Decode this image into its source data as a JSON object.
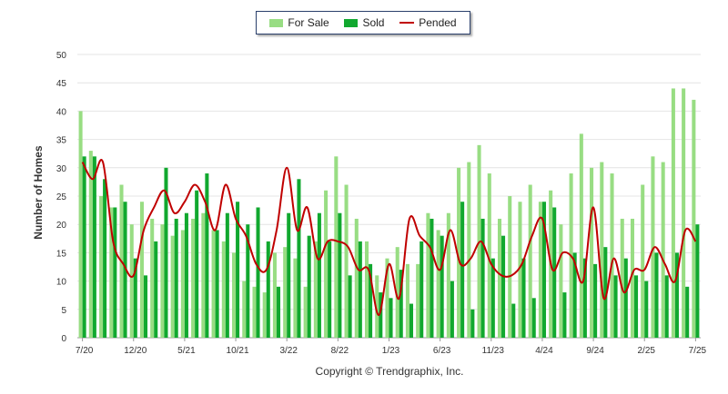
{
  "chart_data": {
    "type": "bar",
    "title": "",
    "xlabel": "",
    "ylabel": "Number of Homes",
    "ylim": [
      0,
      50
    ],
    "yticks": [
      0,
      5,
      10,
      15,
      20,
      25,
      30,
      35,
      40,
      45,
      50
    ],
    "grid": "horizontal",
    "legend_position": "top-center",
    "x_tick_labels": [
      {
        "index": 0,
        "label": "7/20"
      },
      {
        "index": 5,
        "label": "12/20"
      },
      {
        "index": 10,
        "label": "5/21"
      },
      {
        "index": 15,
        "label": "10/21"
      },
      {
        "index": 20,
        "label": "3/22"
      },
      {
        "index": 25,
        "label": "8/22"
      },
      {
        "index": 30,
        "label": "1/23"
      },
      {
        "index": 35,
        "label": "6/23"
      },
      {
        "index": 40,
        "label": "11/23"
      },
      {
        "index": 45,
        "label": "4/24"
      },
      {
        "index": 50,
        "label": "9/24"
      },
      {
        "index": 55,
        "label": "2/25"
      },
      {
        "index": 60,
        "label": "7/25"
      }
    ],
    "categories": [
      "7/20",
      "8/20",
      "9/20",
      "10/20",
      "11/20",
      "12/20",
      "1/21",
      "2/21",
      "3/21",
      "4/21",
      "5/21",
      "6/21",
      "7/21",
      "8/21",
      "9/21",
      "10/21",
      "11/21",
      "12/21",
      "1/22",
      "2/22",
      "3/22",
      "4/22",
      "5/22",
      "6/22",
      "7/22",
      "8/22",
      "9/22",
      "10/22",
      "11/22",
      "12/22",
      "1/23",
      "2/23",
      "3/23",
      "4/23",
      "5/23",
      "6/23",
      "7/23",
      "8/23",
      "9/23",
      "10/23",
      "11/23",
      "12/23",
      "1/24",
      "2/24",
      "3/24",
      "4/24",
      "5/24",
      "6/24",
      "7/24",
      "8/24",
      "9/24",
      "10/24",
      "11/24",
      "12/24",
      "1/25",
      "2/25",
      "3/25",
      "4/25",
      "5/25",
      "6/25",
      "7/25"
    ],
    "series": [
      {
        "name": "For Sale",
        "type": "bar",
        "color": "#98dd83",
        "values": [
          40,
          33,
          25,
          23,
          27,
          20,
          24,
          21,
          20,
          18,
          19,
          21,
          22,
          19,
          17,
          15,
          10,
          9,
          8,
          15,
          16,
          14,
          9,
          17,
          26,
          32,
          27,
          21,
          17,
          11,
          14,
          16,
          13,
          13,
          22,
          19,
          22,
          30,
          31,
          34,
          29,
          21,
          25,
          24,
          27,
          24,
          26,
          20,
          29,
          36,
          30,
          31,
          29,
          21,
          21,
          27,
          32,
          31,
          44,
          44,
          42
        ]
      },
      {
        "name": "Sold",
        "type": "bar",
        "color": "#11a82f",
        "values": [
          32,
          32,
          28,
          23,
          24,
          14,
          11,
          17,
          30,
          21,
          22,
          26,
          29,
          19,
          22,
          24,
          20,
          23,
          17,
          9,
          22,
          28,
          18,
          22,
          17,
          22,
          11,
          17,
          13,
          8,
          7,
          12,
          6,
          17,
          21,
          18,
          10,
          24,
          5,
          21,
          14,
          18,
          6,
          14,
          7,
          24,
          23,
          8,
          15,
          14,
          13,
          16,
          11,
          14,
          11,
          10,
          15,
          11,
          15,
          9,
          20
        ]
      },
      {
        "name": "Pended",
        "type": "line",
        "color": "#c00000",
        "values": [
          31,
          28,
          31,
          17,
          13,
          11,
          19,
          23,
          26,
          22,
          24,
          27,
          24,
          19,
          27,
          21,
          18,
          13,
          12,
          19,
          30,
          19,
          23,
          14,
          17,
          17,
          16,
          12,
          12,
          4,
          13,
          7,
          21,
          18,
          16,
          12,
          19,
          13,
          14,
          17,
          13,
          11,
          11,
          13,
          18,
          21,
          12,
          15,
          14,
          10,
          23,
          7,
          14,
          8,
          12,
          12,
          16,
          13,
          10,
          19,
          17
        ]
      }
    ]
  },
  "copyright": "Copyright © Trendgraphix, Inc."
}
